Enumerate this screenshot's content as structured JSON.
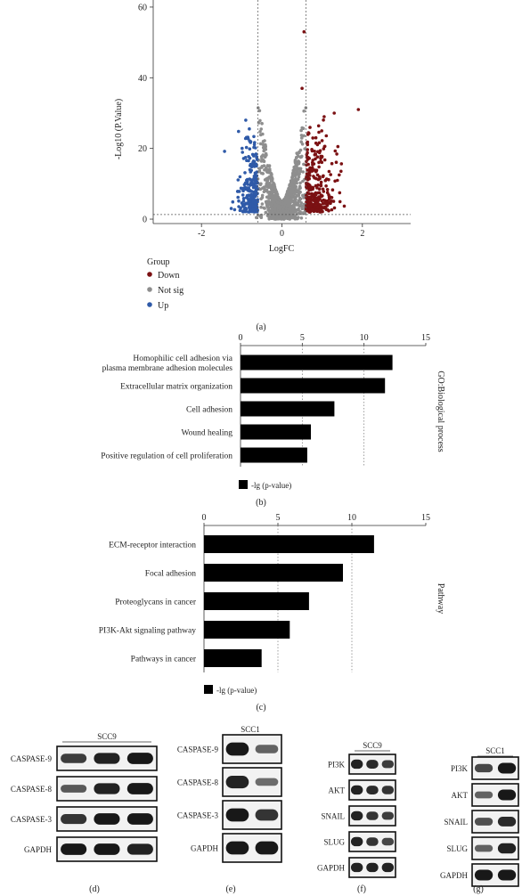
{
  "panel_labels": {
    "a": "(a)",
    "b": "(b)",
    "c": "(c)",
    "d": "(d)",
    "e": "(e)",
    "f": "(f)",
    "g": "(g)"
  },
  "colors": {
    "down": "#7b1113",
    "not_sig": "#8e8e8e",
    "up": "#2f5aa8",
    "bar": "#000000"
  },
  "chart_data": [
    {
      "type": "scatter",
      "xlabel": "LogFC",
      "ylabel": "-Log10 (P.Value)",
      "x_ticks": [
        "-2",
        "0",
        "2"
      ],
      "y_ticks": [
        "0",
        "20",
        "40",
        "60"
      ],
      "xlim": [
        -3.2,
        3.2
      ],
      "ylim": [
        -1,
        62
      ],
      "fc_cutoffs": [
        -0.6,
        0.6
      ],
      "p_cutoff": 1.3,
      "legend_title": "Group",
      "legend": [
        "Down",
        "Not sig",
        "Up"
      ],
      "top_points": [
        {
          "x": 0.55,
          "y": 53
        },
        {
          "x": 1.9,
          "y": 31
        },
        {
          "x": 1.3,
          "y": 30
        },
        {
          "x": 0.5,
          "y": 37
        },
        {
          "x": 1.05,
          "y": 29
        },
        {
          "x": -0.9,
          "y": 28
        }
      ]
    },
    {
      "type": "bar",
      "orientation": "horizontal",
      "categories": [
        "Homophilic cell adhesion via plasma membrane adhesion molecules",
        "Extracellular matrix organization",
        "Cell adhesion",
        "Wound healing",
        "Positive regulation of cell proliferation"
      ],
      "values": [
        12.3,
        11.7,
        7.6,
        5.7,
        5.4
      ],
      "xlim": [
        0,
        15
      ],
      "x_ticks": [
        "0",
        "5",
        "10",
        "15"
      ],
      "side_label": "GO:Biological process",
      "legend": "-lg (p-value)"
    },
    {
      "type": "bar",
      "orientation": "horizontal",
      "categories": [
        "ECM-receptor interaction",
        "Focal adhesion",
        "Proteoglycans in cancer",
        "PI3K-Akt signaling pathway",
        "Pathways in cancer"
      ],
      "values": [
        11.5,
        9.4,
        7.1,
        5.8,
        3.9
      ],
      "xlim": [
        0,
        15
      ],
      "x_ticks": [
        "0",
        "5",
        "10",
        "15"
      ],
      "side_label": "Pathway",
      "legend": "-lg (p-value)"
    }
  ],
  "blots": [
    {
      "panel": "d",
      "title": "SCC9",
      "lanes": 3,
      "rows": [
        {
          "label": "CASPASE-9",
          "intensity": [
            0.75,
            0.9,
            0.95
          ]
        },
        {
          "label": "CASPASE-8",
          "intensity": [
            0.6,
            0.9,
            0.95
          ]
        },
        {
          "label": "CASPASE-3",
          "intensity": [
            0.8,
            0.95,
            0.95
          ]
        },
        {
          "label": "GAPDH",
          "intensity": [
            0.95,
            0.95,
            0.9
          ]
        }
      ]
    },
    {
      "panel": "e",
      "title": "SCC1",
      "lanes": 2,
      "rows": [
        {
          "label": "CASPASE-9",
          "intensity": [
            0.95,
            0.55
          ]
        },
        {
          "label": "CASPASE-8",
          "intensity": [
            0.9,
            0.5
          ]
        },
        {
          "label": "CASPASE-3",
          "intensity": [
            0.95,
            0.8
          ]
        },
        {
          "label": "GAPDH",
          "intensity": [
            0.95,
            0.95
          ]
        }
      ]
    },
    {
      "panel": "f",
      "title": "SCC9",
      "lanes": 3,
      "rows": [
        {
          "label": "PI3K",
          "intensity": [
            0.9,
            0.85,
            0.75
          ]
        },
        {
          "label": "AKT",
          "intensity": [
            0.9,
            0.85,
            0.8
          ]
        },
        {
          "label": "SNAIL",
          "intensity": [
            0.9,
            0.8,
            0.75
          ]
        },
        {
          "label": "SLUG",
          "intensity": [
            0.9,
            0.8,
            0.7
          ]
        },
        {
          "label": "GAPDH",
          "intensity": [
            0.9,
            0.9,
            0.9
          ]
        }
      ]
    },
    {
      "panel": "g",
      "title": "SCC1",
      "lanes": 2,
      "rows": [
        {
          "label": "PI3K",
          "intensity": [
            0.7,
            0.95
          ]
        },
        {
          "label": "AKT",
          "intensity": [
            0.55,
            0.95
          ]
        },
        {
          "label": "SNAIL",
          "intensity": [
            0.65,
            0.85
          ]
        },
        {
          "label": "SLUG",
          "intensity": [
            0.55,
            0.9
          ]
        },
        {
          "label": "GAPDH",
          "intensity": [
            0.95,
            0.95
          ]
        }
      ]
    }
  ]
}
